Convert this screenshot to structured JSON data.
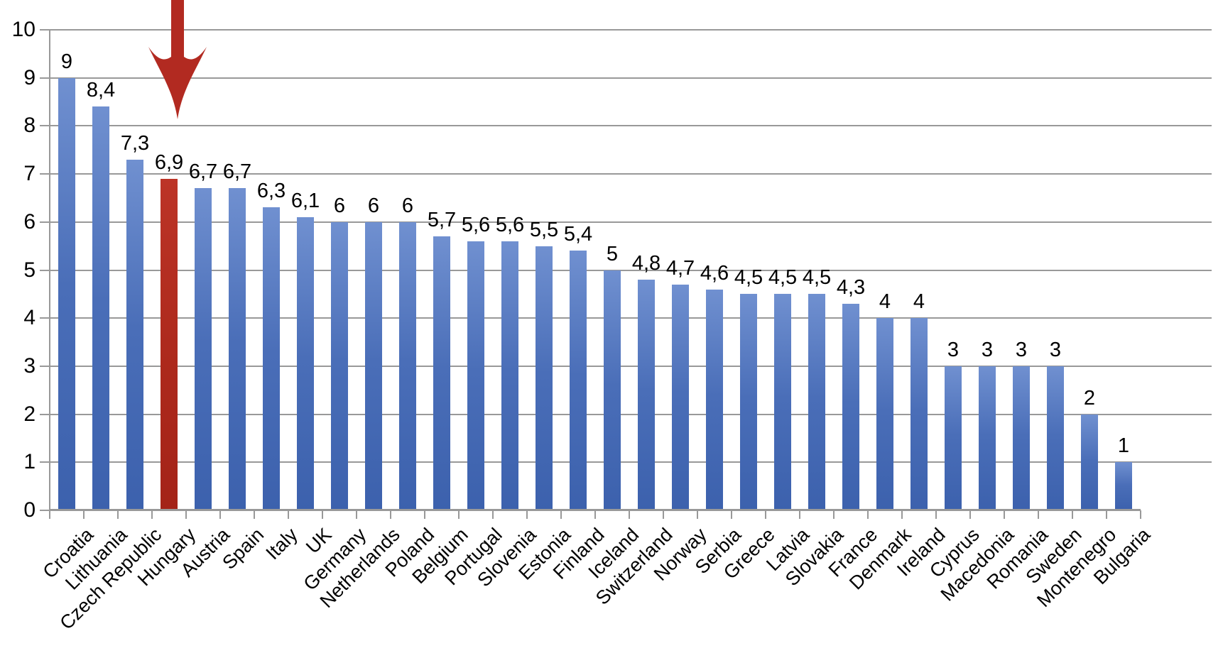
{
  "chart_data": {
    "type": "bar",
    "title": "",
    "xlabel": "",
    "ylabel": "",
    "categories": [
      "Croatia",
      "Lithuania",
      "Czech Republic",
      "Hungary",
      "Austria",
      "Spain",
      "Italy",
      "UK",
      "Germany",
      "Netherlands",
      "Poland",
      "Belgium",
      "Portugal",
      "Slovenia",
      "Estonia",
      "Finland",
      "Iceland",
      "Switzerland",
      "Norway",
      "Serbia",
      "Greece",
      "Latvia",
      "Slovakia",
      "France",
      "Denmark",
      "Ireland",
      "Cyprus",
      "Macedonia",
      "Romania",
      "Sweden",
      "Montenegro",
      "Bulgaria"
    ],
    "values": [
      9,
      8.4,
      7.3,
      6.9,
      6.7,
      6.7,
      6.3,
      6.1,
      6,
      6,
      6,
      5.7,
      5.6,
      5.6,
      5.5,
      5.4,
      5,
      4.8,
      4.7,
      4.6,
      4.5,
      4.5,
      4.5,
      4.3,
      4,
      4,
      3,
      3,
      3,
      3,
      2,
      1
    ],
    "value_labels": [
      "9",
      "8,4",
      "7,3",
      "6,9",
      "6,7",
      "6,7",
      "6,3",
      "6,1",
      "6",
      "6",
      "6",
      "5,7",
      "5,6",
      "5,6",
      "5,5",
      "5,4",
      "5",
      "4,8",
      "4,7",
      "4,6",
      "4,5",
      "4,5",
      "4,5",
      "4,3",
      "4",
      "4",
      "3",
      "3",
      "3",
      "3",
      "2",
      "1"
    ],
    "yticks": [
      "10",
      "9",
      "8",
      "7",
      "6",
      "5",
      "4",
      "3",
      "2",
      "1",
      "0"
    ],
    "ylim": [
      0,
      10
    ],
    "ytick_step": 1,
    "grid": true,
    "legend": false,
    "decimal_separator": ",",
    "bar_color": "#4a6eb8",
    "bar_color_top": "#7090d0",
    "highlight": {
      "category": "Hungary",
      "index": 3,
      "color": "#ae2a1d"
    },
    "annotation": {
      "type": "down-arrow",
      "target": "Hungary",
      "color": "#b22a21"
    },
    "gridline_color": "#999999"
  }
}
